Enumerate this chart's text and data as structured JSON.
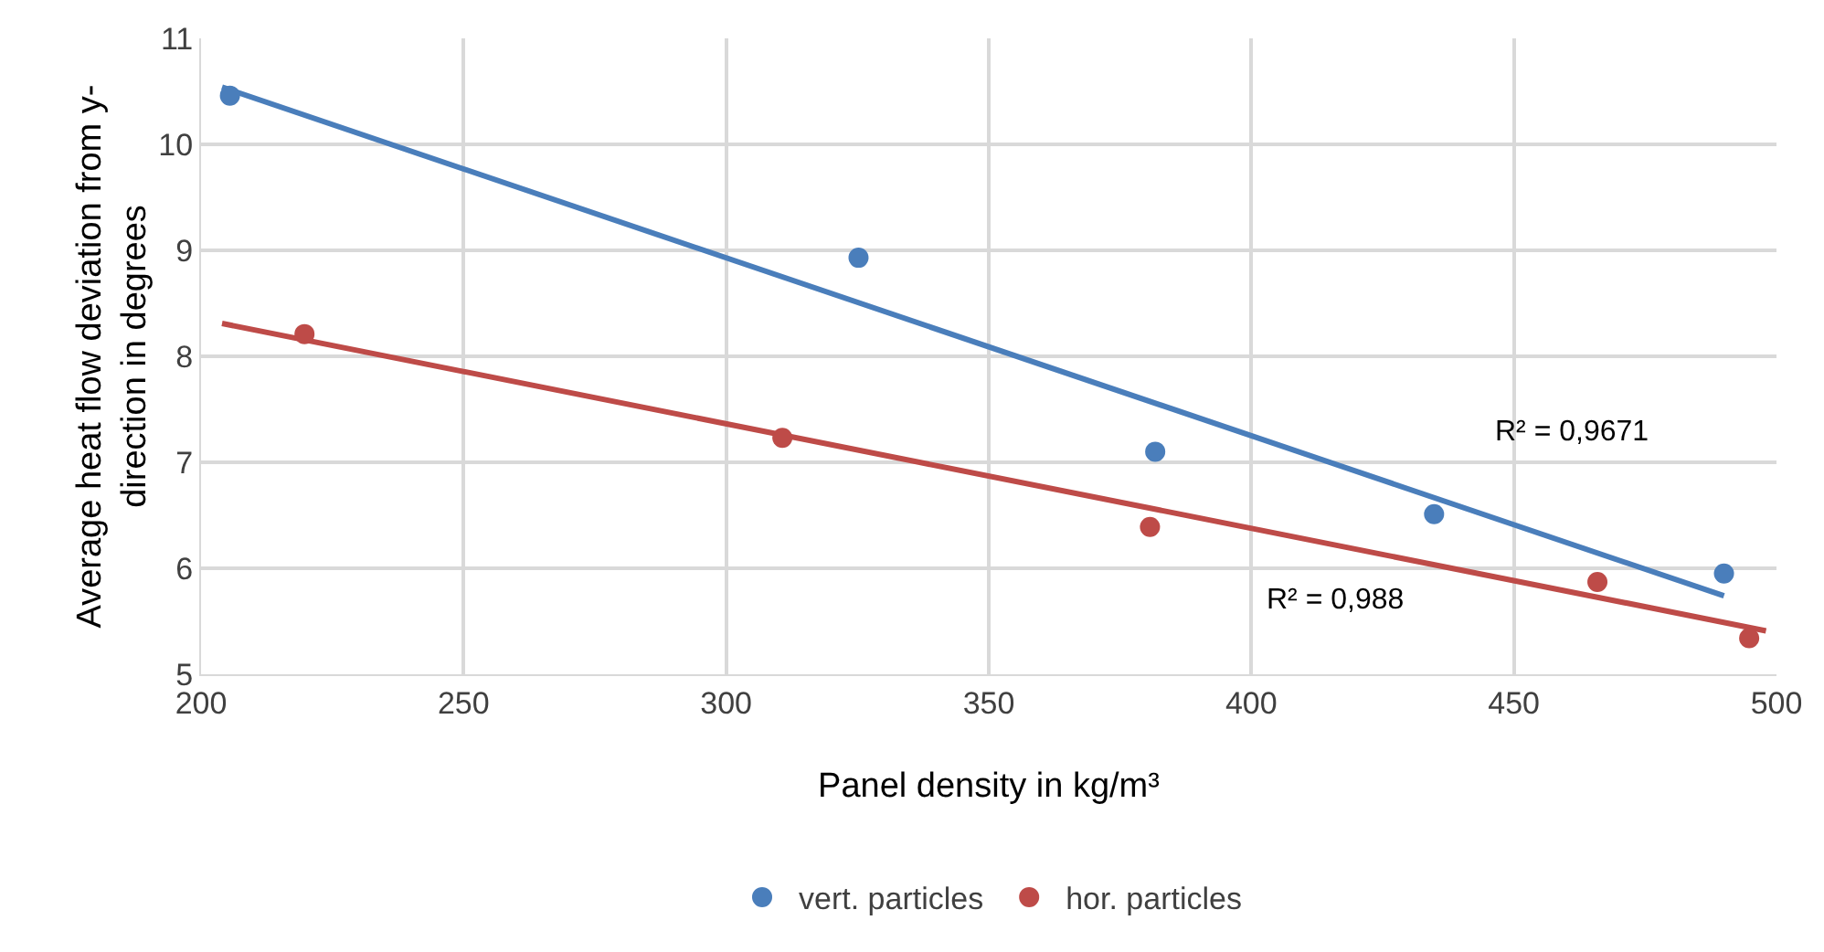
{
  "chart_data": {
    "type": "scatter",
    "xlabel": "Panel density in kg/m³",
    "ylabel": "Average heat flow deviation from y-direction in degrees",
    "xlim": [
      200,
      500
    ],
    "xticks": [
      200,
      250,
      300,
      350,
      400,
      450,
      500
    ],
    "ylim": [
      5,
      11
    ],
    "yticks": [
      5,
      6,
      7,
      8,
      9,
      10,
      11
    ],
    "grid": true,
    "legend": "bottom",
    "series": [
      {
        "name": "vert. particles",
        "color": "#4a7ebb",
        "marker": "circle",
        "x": [
          205.5,
          325.2,
          381.7,
          434.8,
          490
        ],
        "values": [
          10.46,
          8.93,
          7.1,
          6.51,
          5.95
        ]
      },
      {
        "name": "hor. particles",
        "color": "#be4b48",
        "marker": "circle",
        "x": [
          219.7,
          310.7,
          380.7,
          465.9,
          494.8
        ],
        "values": [
          8.21,
          7.23,
          6.39,
          5.87,
          5.34
        ]
      },
      {
        "type": "line",
        "color": "#4a7ebb",
        "line_style": "solid",
        "marker": "none",
        "x": [
          204,
          490
        ],
        "values": [
          10.54,
          5.74
        ]
      },
      {
        "type": "line",
        "color": "#be4b48",
        "line_style": "solid",
        "marker": "none",
        "x": [
          204,
          498
        ],
        "values": [
          8.31,
          5.41
        ]
      }
    ],
    "annotations": [
      "R² = 0,9671",
      "R² = 0,988"
    ]
  }
}
